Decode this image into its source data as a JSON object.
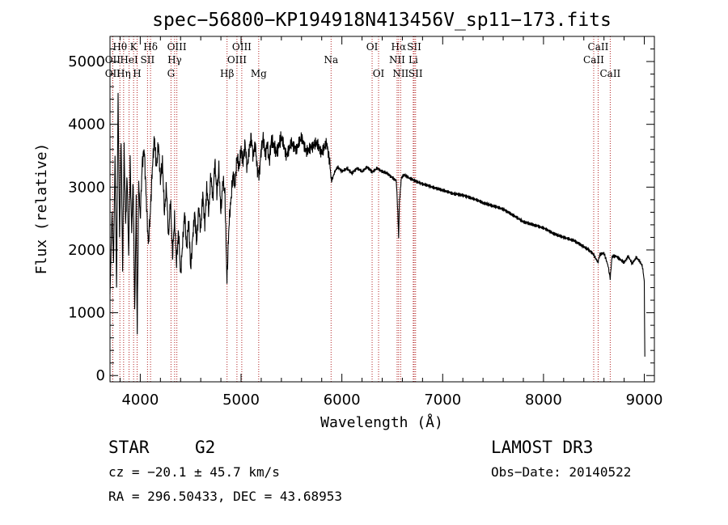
{
  "chart_data": {
    "type": "line",
    "title": "spec−56800−KP194918N413456V_sp11−173.fits",
    "xlabel": "Wavelength (Å)",
    "ylabel": "Flux (relative)",
    "xlim": [
      3700,
      9100
    ],
    "ylim": [
      -100,
      5400
    ],
    "xticks": [
      4000,
      5000,
      6000,
      7000,
      8000,
      9000
    ],
    "yticks": [
      0,
      1000,
      2000,
      3000,
      4000,
      5000
    ],
    "series": [
      {
        "name": "flux",
        "points": [
          [
            3700,
            1300
          ],
          [
            3720,
            2600
          ],
          [
            3735,
            1800
          ],
          [
            3750,
            3500
          ],
          [
            3765,
            1400
          ],
          [
            3780,
            4500
          ],
          [
            3795,
            2200
          ],
          [
            3810,
            3800
          ],
          [
            3825,
            1700
          ],
          [
            3840,
            3600
          ],
          [
            3855,
            2400
          ],
          [
            3870,
            3200
          ],
          [
            3885,
            1900
          ],
          [
            3900,
            3400
          ],
          [
            3915,
            2300
          ],
          [
            3930,
            3100
          ],
          [
            3945,
            1000
          ],
          [
            3960,
            2800
          ],
          [
            3970,
            700
          ],
          [
            3985,
            3100
          ],
          [
            4000,
            2500
          ],
          [
            4020,
            3400
          ],
          [
            4040,
            3600
          ],
          [
            4060,
            2800
          ],
          [
            4080,
            2100
          ],
          [
            4100,
            2600
          ],
          [
            4120,
            3300
          ],
          [
            4140,
            3800
          ],
          [
            4160,
            3300
          ],
          [
            4180,
            3700
          ],
          [
            4200,
            3100
          ],
          [
            4220,
            3400
          ],
          [
            4240,
            2600
          ],
          [
            4260,
            3000
          ],
          [
            4280,
            2200
          ],
          [
            4300,
            2800
          ],
          [
            4320,
            1900
          ],
          [
            4340,
            2500
          ],
          [
            4360,
            1800
          ],
          [
            4380,
            2300
          ],
          [
            4400,
            1600
          ],
          [
            4420,
            2100
          ],
          [
            4440,
            2600
          ],
          [
            4460,
            2000
          ],
          [
            4480,
            2500
          ],
          [
            4500,
            1700
          ],
          [
            4520,
            2200
          ],
          [
            4540,
            2600
          ],
          [
            4560,
            2100
          ],
          [
            4580,
            2700
          ],
          [
            4600,
            2300
          ],
          [
            4620,
            2900
          ],
          [
            4640,
            2400
          ],
          [
            4660,
            3000
          ],
          [
            4680,
            2600
          ],
          [
            4700,
            3200
          ],
          [
            4720,
            2800
          ],
          [
            4740,
            3400
          ],
          [
            4760,
            2900
          ],
          [
            4780,
            3300
          ],
          [
            4800,
            2600
          ],
          [
            4820,
            3100
          ],
          [
            4840,
            2900
          ],
          [
            4860,
            1500
          ],
          [
            4880,
            2400
          ],
          [
            4900,
            2800
          ],
          [
            4920,
            3200
          ],
          [
            4940,
            3000
          ],
          [
            4960,
            3500
          ],
          [
            4980,
            3300
          ],
          [
            5000,
            3600
          ],
          [
            5020,
            3400
          ],
          [
            5040,
            3700
          ],
          [
            5060,
            3300
          ],
          [
            5080,
            3600
          ],
          [
            5100,
            3800
          ],
          [
            5120,
            3500
          ],
          [
            5140,
            3700
          ],
          [
            5160,
            3300
          ],
          [
            5180,
            3200
          ],
          [
            5200,
            3600
          ],
          [
            5220,
            3800
          ],
          [
            5240,
            3500
          ],
          [
            5260,
            3700
          ],
          [
            5280,
            3400
          ],
          [
            5300,
            3750
          ],
          [
            5350,
            3550
          ],
          [
            5400,
            3800
          ],
          [
            5450,
            3500
          ],
          [
            5500,
            3700
          ],
          [
            5550,
            3600
          ],
          [
            5600,
            3800
          ],
          [
            5650,
            3550
          ],
          [
            5700,
            3650
          ],
          [
            5750,
            3700
          ],
          [
            5800,
            3550
          ],
          [
            5850,
            3700
          ],
          [
            5880,
            3400
          ],
          [
            5895,
            3100
          ],
          [
            5910,
            3150
          ],
          [
            5930,
            3250
          ],
          [
            5960,
            3320
          ],
          [
            6000,
            3250
          ],
          [
            6050,
            3300
          ],
          [
            6100,
            3220
          ],
          [
            6150,
            3300
          ],
          [
            6200,
            3250
          ],
          [
            6250,
            3320
          ],
          [
            6300,
            3240
          ],
          [
            6350,
            3300
          ],
          [
            6400,
            3250
          ],
          [
            6450,
            3220
          ],
          [
            6500,
            3150
          ],
          [
            6540,
            3100
          ],
          [
            6555,
            2600
          ],
          [
            6563,
            2200
          ],
          [
            6570,
            2750
          ],
          [
            6590,
            3150
          ],
          [
            6620,
            3200
          ],
          [
            6660,
            3150
          ],
          [
            6700,
            3120
          ],
          [
            6750,
            3080
          ],
          [
            6800,
            3050
          ],
          [
            6900,
            3000
          ],
          [
            7000,
            2950
          ],
          [
            7100,
            2900
          ],
          [
            7200,
            2870
          ],
          [
            7300,
            2820
          ],
          [
            7400,
            2750
          ],
          [
            7500,
            2700
          ],
          [
            7600,
            2650
          ],
          [
            7700,
            2550
          ],
          [
            7800,
            2450
          ],
          [
            7900,
            2400
          ],
          [
            8000,
            2350
          ],
          [
            8100,
            2260
          ],
          [
            8200,
            2200
          ],
          [
            8300,
            2150
          ],
          [
            8400,
            2050
          ],
          [
            8450,
            2000
          ],
          [
            8500,
            1920
          ],
          [
            8540,
            1800
          ],
          [
            8560,
            1930
          ],
          [
            8600,
            1950
          ],
          [
            8640,
            1750
          ],
          [
            8662,
            1550
          ],
          [
            8680,
            1900
          ],
          [
            8720,
            1900
          ],
          [
            8760,
            1850
          ],
          [
            8800,
            1800
          ],
          [
            8840,
            1900
          ],
          [
            8880,
            1780
          ],
          [
            8920,
            1880
          ],
          [
            8950,
            1830
          ],
          [
            8980,
            1750
          ],
          [
            9000,
            1500
          ],
          [
            9005,
            300
          ]
        ]
      }
    ],
    "lines": [
      {
        "name": "Hθ",
        "wavelength": 3798,
        "row": 1
      },
      {
        "name": "OII",
        "wavelength": 3727,
        "row": 2
      },
      {
        "name": "OII",
        "wavelength": 3727,
        "row": 3
      },
      {
        "name": "K",
        "wavelength": 3934,
        "row": 1
      },
      {
        "name": "HeI",
        "wavelength": 3889,
        "row": 2
      },
      {
        "name": "Hη",
        "wavelength": 3835,
        "row": 3
      },
      {
        "name": "H",
        "wavelength": 3969,
        "row": 3
      },
      {
        "name": "Hδ",
        "wavelength": 4102,
        "row": 1
      },
      {
        "name": "SII",
        "wavelength": 4072,
        "row": 2
      },
      {
        "name": "OIII",
        "wavelength": 4363,
        "row": 1
      },
      {
        "name": "Hγ",
        "wavelength": 4341,
        "row": 2
      },
      {
        "name": "G",
        "wavelength": 4305,
        "row": 3
      },
      {
        "name": "Hβ",
        "wavelength": 4861,
        "row": 3
      },
      {
        "name": "OIII",
        "wavelength": 5007,
        "row": 1
      },
      {
        "name": "OIII",
        "wavelength": 4959,
        "row": 2
      },
      {
        "name": "Mg",
        "wavelength": 5175,
        "row": 3
      },
      {
        "name": "Na",
        "wavelength": 5893,
        "row": 2
      },
      {
        "name": "OI",
        "wavelength": 6300,
        "row": 1
      },
      {
        "name": "OI",
        "wavelength": 6364,
        "row": 3
      },
      {
        "name": "Hα",
        "wavelength": 6563,
        "row": 1
      },
      {
        "name": "SII",
        "wavelength": 6717,
        "row": 1
      },
      {
        "name": "NII",
        "wavelength": 6548,
        "row": 2
      },
      {
        "name": "Li",
        "wavelength": 6708,
        "row": 2
      },
      {
        "name": "NII",
        "wavelength": 6583,
        "row": 3
      },
      {
        "name": "SII",
        "wavelength": 6731,
        "row": 3
      },
      {
        "name": "CaII",
        "wavelength": 8542,
        "row": 1
      },
      {
        "name": "CaII",
        "wavelength": 8498,
        "row": 2
      },
      {
        "name": "CaII",
        "wavelength": 8662,
        "row": 3
      }
    ]
  },
  "info": {
    "object_class": "STAR",
    "subclass": "G2",
    "survey": "LAMOST DR3",
    "redshift": "cz = −20.1 ± 45.7 km/s",
    "obs_date": "Obs−Date: 20140522",
    "coords": "RA = 296.50433, DEC =  43.68953"
  },
  "colors": {
    "line_marker": "#b22222",
    "spectrum": "#000000"
  }
}
